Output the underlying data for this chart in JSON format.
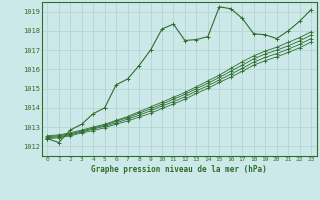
{
  "title": "Graphe pression niveau de la mer (hPa)",
  "bg_color": "#cce8e8",
  "grid_color": "#b8d8d8",
  "line_color": "#2d6e2d",
  "xlim": [
    -0.5,
    23.5
  ],
  "ylim": [
    1011.5,
    1019.5
  ],
  "yticks": [
    1012,
    1013,
    1014,
    1015,
    1016,
    1017,
    1018,
    1019
  ],
  "xticks": [
    0,
    1,
    2,
    3,
    4,
    5,
    6,
    7,
    8,
    9,
    10,
    11,
    12,
    13,
    14,
    15,
    16,
    17,
    18,
    19,
    20,
    21,
    22,
    23
  ],
  "series": [
    [
      1012.4,
      1012.2,
      1012.85,
      1013.15,
      1013.7,
      1014.0,
      1015.2,
      1015.5,
      1016.2,
      1017.0,
      1018.1,
      1018.35,
      1017.5,
      1017.55,
      1017.7,
      1019.25,
      1019.15,
      1018.65,
      1017.85,
      1017.8,
      1017.6,
      1018.0,
      1018.5,
      1019.1
    ],
    [
      1012.55,
      1012.6,
      1012.7,
      1012.85,
      1013.0,
      1013.15,
      1013.35,
      1013.55,
      1013.8,
      1014.05,
      1014.3,
      1014.55,
      1014.8,
      1015.1,
      1015.4,
      1015.7,
      1016.05,
      1016.4,
      1016.7,
      1016.95,
      1017.15,
      1017.4,
      1017.65,
      1017.95
    ],
    [
      1012.5,
      1012.55,
      1012.65,
      1012.8,
      1012.95,
      1013.1,
      1013.3,
      1013.5,
      1013.72,
      1013.95,
      1014.2,
      1014.45,
      1014.7,
      1015.0,
      1015.28,
      1015.58,
      1015.9,
      1016.22,
      1016.55,
      1016.8,
      1017.0,
      1017.22,
      1017.48,
      1017.78
    ],
    [
      1012.45,
      1012.5,
      1012.6,
      1012.75,
      1012.9,
      1013.05,
      1013.22,
      1013.42,
      1013.62,
      1013.85,
      1014.1,
      1014.32,
      1014.58,
      1014.88,
      1015.15,
      1015.45,
      1015.75,
      1016.05,
      1016.38,
      1016.62,
      1016.82,
      1017.05,
      1017.3,
      1017.6
    ],
    [
      1012.4,
      1012.45,
      1012.55,
      1012.7,
      1012.82,
      1012.97,
      1013.15,
      1013.32,
      1013.52,
      1013.72,
      1013.97,
      1014.2,
      1014.45,
      1014.75,
      1015.02,
      1015.32,
      1015.6,
      1015.9,
      1016.22,
      1016.45,
      1016.65,
      1016.88,
      1017.12,
      1017.42
    ]
  ]
}
